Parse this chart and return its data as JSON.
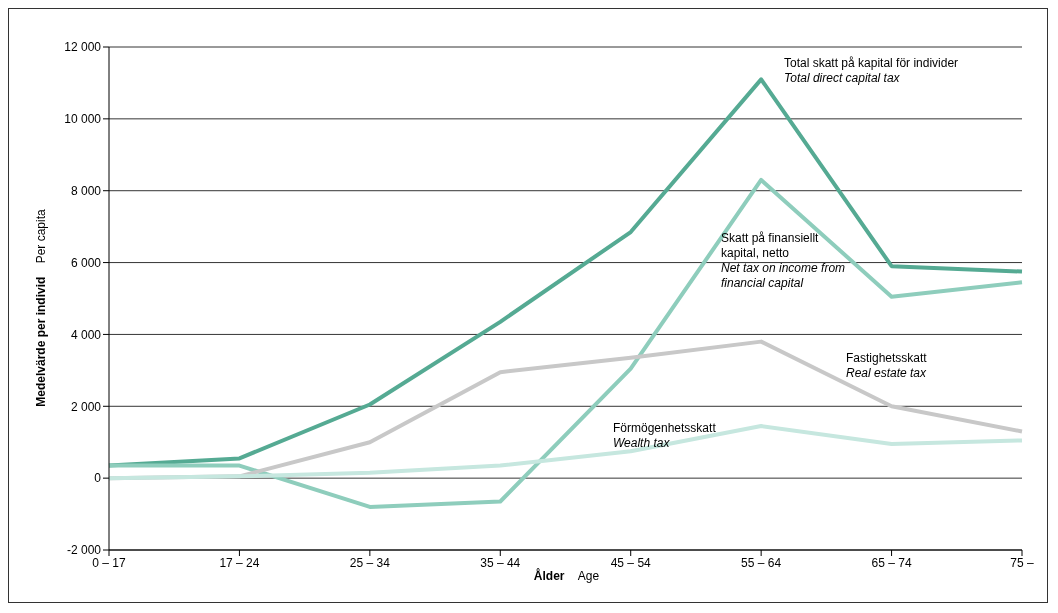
{
  "chart_data": {
    "type": "line",
    "xlabel": "Ålder\nAge",
    "ylabel": "Medelvärde per individ\nPer capita",
    "categories": [
      "0 – 17",
      "17 – 24",
      "25 – 34",
      "35 – 44",
      "45 – 54",
      "55 – 64",
      "65 – 74",
      "75 –"
    ],
    "series": [
      {
        "name": "Total skatt på kapital för individer\nTotal direct capital tax",
        "color": "#55aa93",
        "values": [
          350,
          550,
          2050,
          4350,
          6850,
          11100,
          5900,
          5750
        ]
      },
      {
        "name": "Skatt på finansiellt kapital, netto\nNet tax on income from financial capital",
        "color": "#8ecdbc",
        "values": [
          350,
          350,
          -800,
          -650,
          3050,
          8300,
          5050,
          5450
        ]
      },
      {
        "name": "Fastighetsskatt\nReal estate tax",
        "color": "#c8c8c8",
        "values": [
          0,
          50,
          1000,
          2950,
          3350,
          3800,
          2000,
          1300
        ]
      },
      {
        "name": "Förmögenhetsskatt\nWealth tax",
        "color": "#c6e7df",
        "values": [
          0,
          50,
          150,
          350,
          750,
          1450,
          950,
          1050
        ]
      }
    ],
    "ylim": [
      -2000,
      12000
    ],
    "yticks": [
      {
        "value": -2000,
        "label": "-2 000"
      },
      0,
      {
        "value": 2000,
        "label": "2 000"
      },
      {
        "value": 4000,
        "label": "4 000"
      },
      {
        "value": 6000,
        "label": "6 000"
      },
      {
        "value": 8000,
        "label": "8 000"
      },
      {
        "value": 10000,
        "label": "10 000"
      },
      {
        "value": 12000,
        "label": "12 000"
      }
    ],
    "grid": "y",
    "legend": false,
    "marker": "none",
    "line_style": "solid"
  }
}
